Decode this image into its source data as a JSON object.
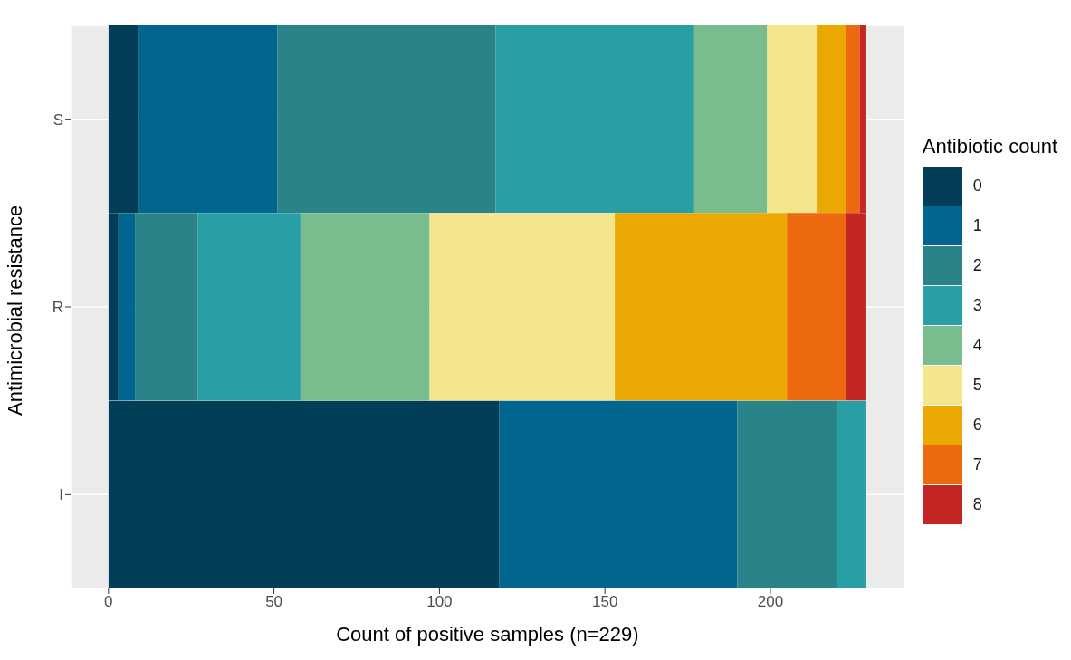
{
  "chart_data": {
    "type": "bar",
    "orientation": "horizontal",
    "stacked": true,
    "xlabel": "Count of positive samples (n=229)",
    "ylabel": "Antimicrobial resistance",
    "legend_title": "Antibiotic count",
    "legend": "right",
    "grid": true,
    "categories": [
      "S",
      "R",
      "I"
    ],
    "xlim": [
      -11.45,
      240.45
    ],
    "xticks": [
      0,
      50,
      100,
      150,
      200
    ],
    "series": [
      {
        "name": "0",
        "color": "#023e58",
        "values": [
          9,
          3,
          118
        ]
      },
      {
        "name": "1",
        "color": "#00668f",
        "values": [
          42,
          5,
          72
        ]
      },
      {
        "name": "2",
        "color": "#2a8389",
        "values": [
          66,
          19,
          30
        ]
      },
      {
        "name": "3",
        "color": "#279fa5",
        "values": [
          60,
          31,
          9
        ]
      },
      {
        "name": "4",
        "color": "#79bd8f",
        "values": [
          22,
          39,
          null
        ]
      },
      {
        "name": "5",
        "color": "#f3e68c",
        "values": [
          15,
          56,
          null
        ]
      },
      {
        "name": "6",
        "color": "#eba702",
        "values": [
          9,
          52,
          null
        ]
      },
      {
        "name": "7",
        "color": "#ec690f",
        "values": [
          4,
          18,
          null
        ]
      },
      {
        "name": "8",
        "color": "#c42626",
        "values": [
          2,
          6,
          null
        ]
      }
    ]
  }
}
